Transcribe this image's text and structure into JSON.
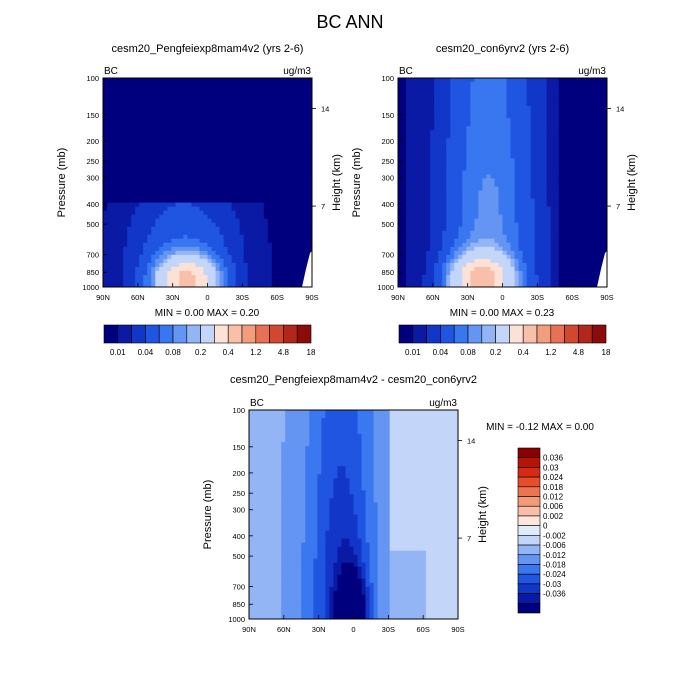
{
  "page": {
    "title": "BC ANN"
  },
  "colors": {
    "bc_scale": [
      "#00007f",
      "#0a1aa5",
      "#1136c8",
      "#1f55e0",
      "#3877ef",
      "#6595f2",
      "#93b5f5",
      "#c3d6f9",
      "#fbe1d6",
      "#f8c0a8",
      "#f29d7c",
      "#e67153",
      "#d1482f",
      "#b3261a",
      "#8b0a0a"
    ],
    "diff_scale": [
      "#00007f",
      "#0a1aa5",
      "#1236c8",
      "#1f55e0",
      "#3a78ef",
      "#6595f2",
      "#93b5f5",
      "#c3d6f9",
      "#e0ecfb",
      "#ffffff",
      "#fde6da",
      "#f8c0a8",
      "#f39a78",
      "#ed7450",
      "#e84d2a",
      "#d52a14",
      "#b71409",
      "#8b0000"
    ]
  },
  "chart_data": [
    {
      "type": "contour",
      "title": "cesm20_Pengfeiexp8mam4v2 (yrs 2-6)",
      "corner_left": "BC",
      "corner_right": "ug/m3",
      "ylabel": "Pressure (mb)",
      "ylabel_right": "Height (km)",
      "x_ticks": [
        "90N",
        "60N",
        "30N",
        "0",
        "30S",
        "60S",
        "90S"
      ],
      "x_values": [
        90,
        60,
        30,
        0,
        -30,
        -60,
        -90
      ],
      "y_ticks": [
        "100",
        "150",
        "200",
        "250",
        "300",
        "400",
        "500",
        "700",
        "850",
        "1000"
      ],
      "y_values": [
        100,
        150,
        200,
        250,
        300,
        400,
        500,
        700,
        850,
        1000
      ],
      "height_ticks": [
        "14",
        "7"
      ],
      "height_values": [
        14,
        7
      ],
      "stats": "MIN =   0.00   MAX =   0.20",
      "min": 0.0,
      "max": 0.2,
      "colorbar_labels": [
        "0.01",
        "0.04",
        "0.08",
        "0.2",
        "0.4",
        "1.2",
        "4.8",
        "18"
      ],
      "colorbar_levels": [
        0.005,
        0.01,
        0.02,
        0.04,
        0.06,
        0.08,
        0.1,
        0.2,
        0.3,
        0.4,
        0.8,
        1.2,
        2.4,
        4.8,
        9.6,
        18
      ],
      "ylim": [
        1000,
        100
      ],
      "xlim": [
        90,
        -90
      ]
    },
    {
      "type": "contour",
      "title": "cesm20_con6yrv2 (yrs 2-6)",
      "corner_left": "BC",
      "corner_right": "ug/m3",
      "ylabel": "Pressure (mb)",
      "ylabel_right": "Height (km)",
      "x_ticks": [
        "90N",
        "60N",
        "30N",
        "0",
        "30S",
        "60S",
        "90S"
      ],
      "x_values": [
        90,
        60,
        30,
        0,
        -30,
        -60,
        -90
      ],
      "y_ticks": [
        "100",
        "150",
        "200",
        "250",
        "300",
        "400",
        "500",
        "700",
        "850",
        "1000"
      ],
      "y_values": [
        100,
        150,
        200,
        250,
        300,
        400,
        500,
        700,
        850,
        1000
      ],
      "height_ticks": [
        "14",
        "7"
      ],
      "height_values": [
        14,
        7
      ],
      "stats": "MIN =   0.00   MAX =   0.23",
      "min": 0.0,
      "max": 0.23,
      "colorbar_labels": [
        "0.01",
        "0.04",
        "0.08",
        "0.2",
        "0.4",
        "1.2",
        "4.8",
        "18"
      ],
      "colorbar_levels": [
        0.005,
        0.01,
        0.02,
        0.04,
        0.06,
        0.08,
        0.1,
        0.2,
        0.3,
        0.4,
        0.8,
        1.2,
        2.4,
        4.8,
        9.6,
        18
      ],
      "ylim": [
        1000,
        100
      ],
      "xlim": [
        90,
        -90
      ]
    },
    {
      "type": "contour",
      "title": "cesm20_Pengfeiexp8mam4v2 - cesm20_con6yrv2",
      "corner_left": "BC",
      "corner_right": "ug/m3",
      "ylabel": "Pressure (mb)",
      "ylabel_right": "Height (km)",
      "x_ticks": [
        "90N",
        "60N",
        "30N",
        "0",
        "30S",
        "60S",
        "90S"
      ],
      "x_values": [
        90,
        60,
        30,
        0,
        -30,
        -60,
        -90
      ],
      "y_ticks": [
        "100",
        "150",
        "200",
        "250",
        "300",
        "400",
        "500",
        "700",
        "850",
        "1000"
      ],
      "y_values": [
        100,
        150,
        200,
        250,
        300,
        400,
        500,
        700,
        850,
        1000
      ],
      "height_ticks": [
        "14",
        "7"
      ],
      "height_values": [
        14,
        7
      ],
      "stats": "MIN =  -0.12   MAX =   0.00",
      "min": -0.12,
      "max": 0.0,
      "colorbar_labels": [
        "0.036",
        "0.03",
        "0.024",
        "0.018",
        "0.012",
        "0.006",
        "0.002",
        "0",
        "-0.002",
        "-0.006",
        "-0.012",
        "-0.018",
        "-0.024",
        "-0.03",
        "-0.036"
      ],
      "colorbar_levels": [
        0.036,
        0.03,
        0.024,
        0.018,
        0.012,
        0.006,
        0.002,
        0,
        -0.002,
        -0.006,
        -0.012,
        -0.018,
        -0.024,
        -0.03,
        -0.036
      ],
      "ylim": [
        1000,
        100
      ],
      "xlim": [
        90,
        -90
      ]
    }
  ]
}
